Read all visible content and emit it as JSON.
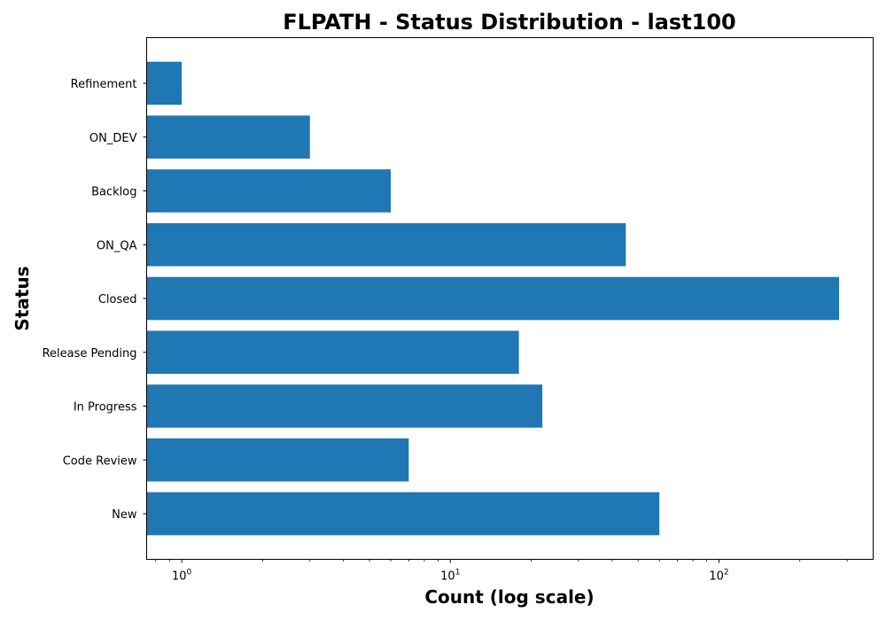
{
  "chart_data": {
    "type": "bar",
    "orientation": "horizontal",
    "title": "FLPATH - Status Distribution - last100",
    "xlabel": "Count (log scale)",
    "ylabel": "Status",
    "xscale": "log",
    "xlim": [
      0.74,
      375
    ],
    "bar_color": "#1f77b4",
    "x_ticks": [
      {
        "base": "10",
        "exp": "0",
        "value": 1
      },
      {
        "base": "10",
        "exp": "1",
        "value": 10
      },
      {
        "base": "10",
        "exp": "2",
        "value": 100
      }
    ],
    "categories": [
      "Refinement",
      "ON_DEV",
      "Backlog",
      "ON_QA",
      "Closed",
      "Release Pending",
      "In Progress",
      "Code Review",
      "New"
    ],
    "values": [
      1,
      3,
      6,
      45,
      280,
      18,
      22,
      7,
      60
    ],
    "grid": false,
    "legend": "none"
  }
}
